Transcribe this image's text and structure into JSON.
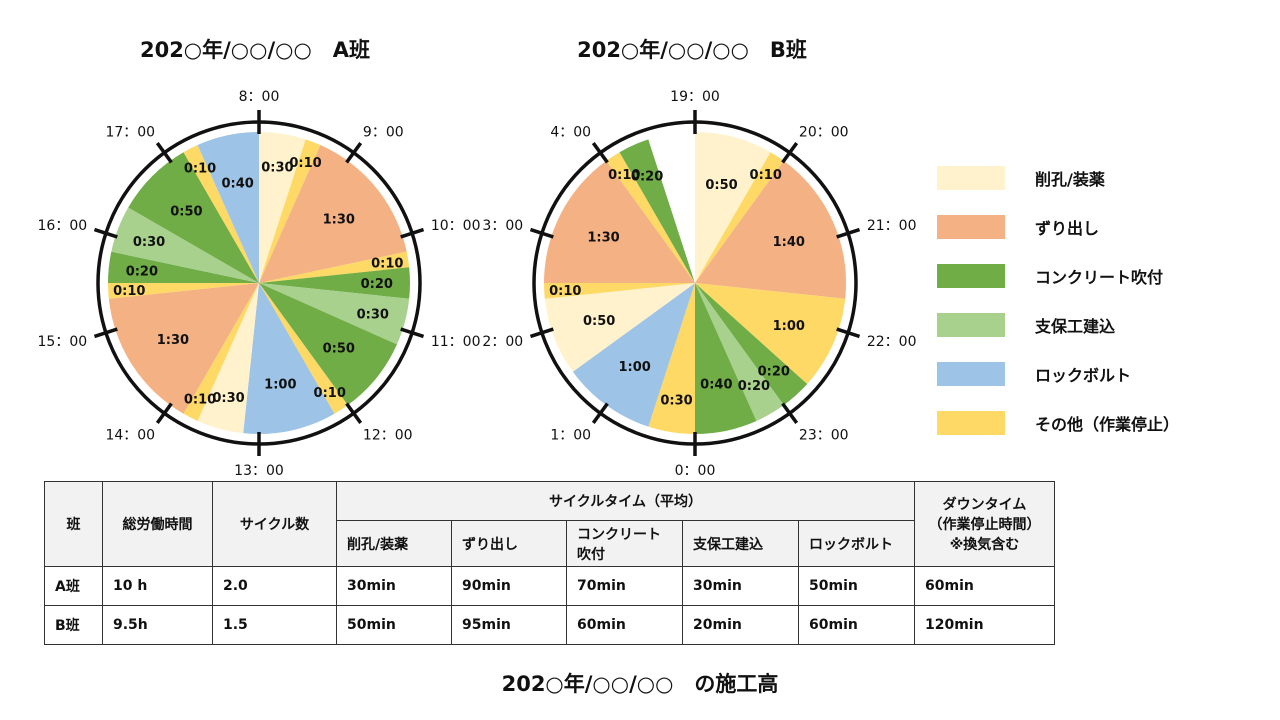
{
  "titles": {
    "a": "202○年/○○/○○　A班",
    "b": "202○年/○○/○○　B班",
    "bottom": "202○年/○○/○○　の施工高"
  },
  "colors": {
    "削孔/装薬": "#FFF2CC",
    "ずり出し": "#F4B183",
    "コンクリート吹付": "#70AD47",
    "支保工建込": "#A9D18E",
    "ロックボルト": "#9DC3E6",
    "その他（作業停止）": "#FFD966",
    "空白": "#FFFFFF"
  },
  "legend": [
    "削孔/装薬",
    "ずり出し",
    "コンクリート吹付",
    "支保工建込",
    "ロックボルト",
    "その他（作業停止）"
  ],
  "chart_data": [
    {
      "type": "pie",
      "title": "202○年/○○/○○　A班",
      "total_minutes": 600,
      "ticks": [
        "8：00",
        "9：00",
        "10：00",
        "11：00",
        "12：00",
        "13：00",
        "14：00",
        "15：00",
        "16：00",
        "17：00"
      ],
      "segments": [
        {
          "category": "削孔/装薬",
          "minutes": 30,
          "label": "0:30"
        },
        {
          "category": "その他（作業停止）",
          "minutes": 10,
          "label": "0:10"
        },
        {
          "category": "ずり出し",
          "minutes": 90,
          "label": "1:30"
        },
        {
          "category": "その他（作業停止）",
          "minutes": 10,
          "label": "0:10"
        },
        {
          "category": "コンクリート吹付",
          "minutes": 20,
          "label": "0:20"
        },
        {
          "category": "支保工建込",
          "minutes": 30,
          "label": "0:30"
        },
        {
          "category": "コンクリート吹付",
          "minutes": 50,
          "label": "0:50"
        },
        {
          "category": "その他（作業停止）",
          "minutes": 10,
          "label": "0:10"
        },
        {
          "category": "ロックボルト",
          "minutes": 60,
          "label": "1:00"
        },
        {
          "category": "削孔/装薬",
          "minutes": 30,
          "label": "0:30"
        },
        {
          "category": "その他（作業停止）",
          "minutes": 10,
          "label": "0:10"
        },
        {
          "category": "ずり出し",
          "minutes": 90,
          "label": "1:30"
        },
        {
          "category": "その他（作業停止）",
          "minutes": 10,
          "label": "0:10"
        },
        {
          "category": "コンクリート吹付",
          "minutes": 20,
          "label": "0:20"
        },
        {
          "category": "支保工建込",
          "minutes": 30,
          "label": "0:30"
        },
        {
          "category": "コンクリート吹付",
          "minutes": 50,
          "label": "0:50"
        },
        {
          "category": "その他（作業停止）",
          "minutes": 10,
          "label": "0:10"
        },
        {
          "category": "ロックボルト",
          "minutes": 40,
          "label": "0:40"
        }
      ]
    },
    {
      "type": "pie",
      "title": "202○年/○○/○○　B班",
      "total_minutes": 600,
      "ticks": [
        "19：00",
        "20：00",
        "21：00",
        "22：00",
        "23：00",
        "0：00",
        "1：00",
        "2：00",
        "3：00",
        "4：00"
      ],
      "segments": [
        {
          "category": "削孔/装薬",
          "minutes": 50,
          "label": "0:50"
        },
        {
          "category": "その他（作業停止）",
          "minutes": 10,
          "label": "0:10"
        },
        {
          "category": "ずり出し",
          "minutes": 100,
          "label": "1:40"
        },
        {
          "category": "その他（作業停止）",
          "minutes": 60,
          "label": "1:00"
        },
        {
          "category": "コンクリート吹付",
          "minutes": 20,
          "label": "0:20"
        },
        {
          "category": "支保工建込",
          "minutes": 20,
          "label": "0:20"
        },
        {
          "category": "コンクリート吹付",
          "minutes": 40,
          "label": "0:40"
        },
        {
          "category": "その他（作業停止）",
          "minutes": 30,
          "label": "0:30"
        },
        {
          "category": "ロックボルト",
          "minutes": 60,
          "label": "1:00"
        },
        {
          "category": "削孔/装薬",
          "minutes": 50,
          "label": "0:50"
        },
        {
          "category": "その他（作業停止）",
          "minutes": 10,
          "label": "0:10"
        },
        {
          "category": "ずり出し",
          "minutes": 90,
          "label": "1:30"
        },
        {
          "category": "その他（作業停止）",
          "minutes": 10,
          "label": "0:10"
        },
        {
          "category": "コンクリート吹付",
          "minutes": 20,
          "label": "0:20"
        },
        {
          "category": "空白",
          "minutes": 30,
          "label": ""
        }
      ]
    }
  ],
  "table": {
    "headers": {
      "team": "班",
      "hours": "総労働時間",
      "cycles": "サイクル数",
      "cycle_time": "サイクルタイム（平均）",
      "downtime_1": "ダウンタイム",
      "downtime_2": "（作業停止時間）",
      "downtime_3": "※換気含む"
    },
    "sub_headers": {
      "drill": "削孔/装薬",
      "muck": "ずり出し",
      "shot_1": "コンクリート",
      "shot_2": "吹付",
      "support": "支保工建込",
      "bolt": "ロックボルト"
    },
    "rows": [
      {
        "team": "A班",
        "hours": "10 h",
        "cycles": "2.0",
        "drill": "30min",
        "muck": "90min",
        "shot": "70min",
        "support": "30min",
        "bolt": "50min",
        "down": "60min"
      },
      {
        "team": "B班",
        "hours": "9.5h",
        "cycles": "1.5",
        "drill": "50min",
        "muck": "95min",
        "shot": "60min",
        "support": "20min",
        "bolt": "60min",
        "down": "120min"
      }
    ]
  }
}
